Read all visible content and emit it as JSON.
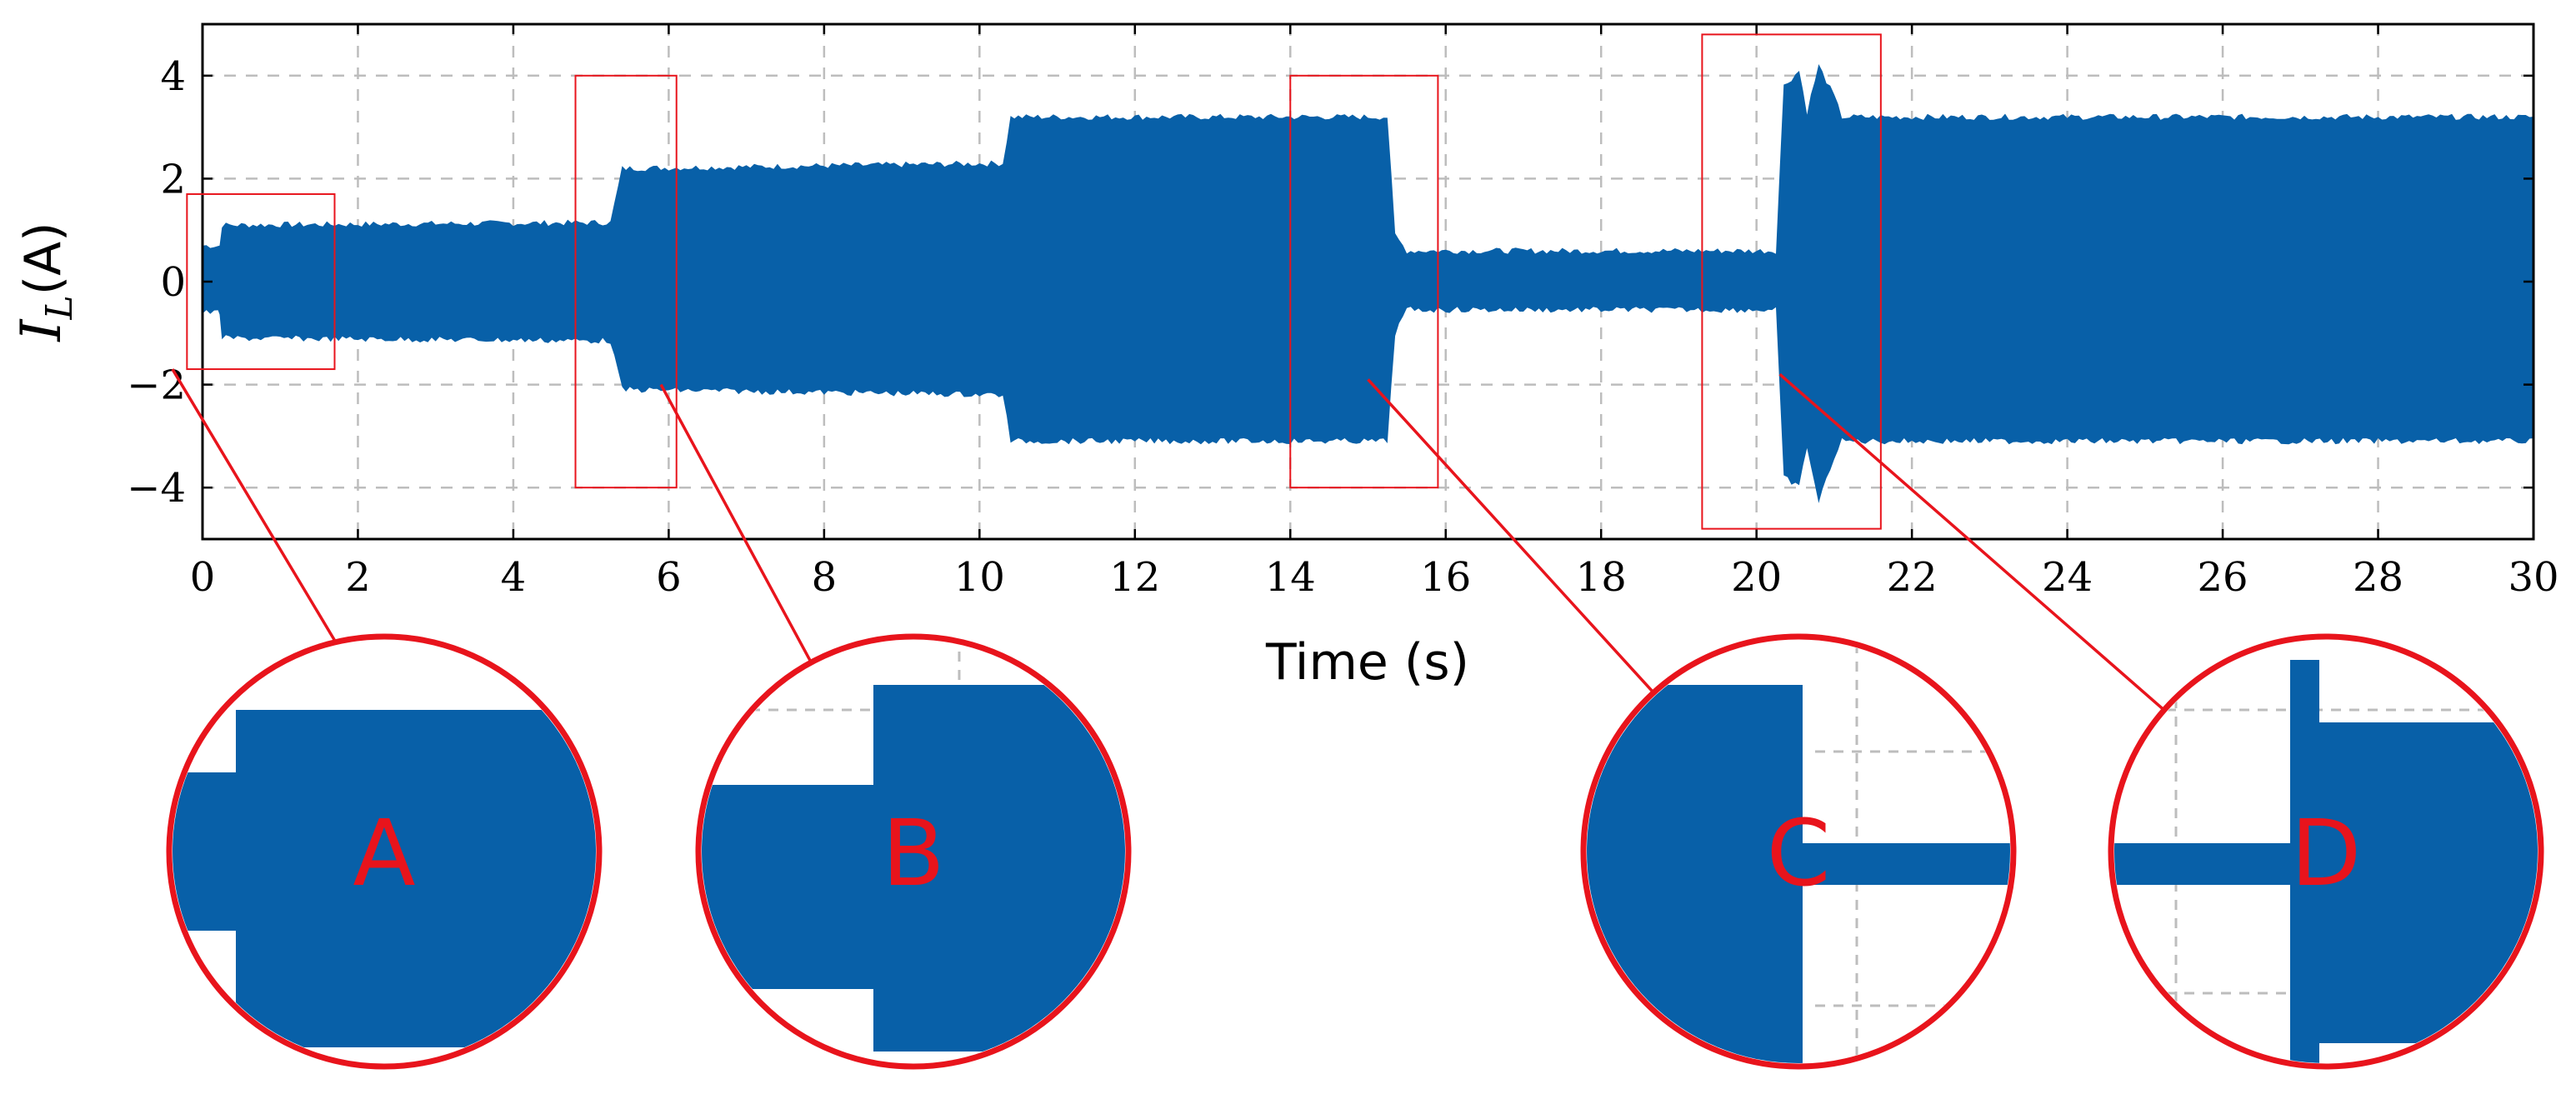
{
  "chart_data": {
    "type": "line",
    "xlabel": "Time (s)",
    "ylabel": "I_L(A)",
    "ylabel_main": "I",
    "ylabel_sub": "L",
    "ylabel_unit": "(A)",
    "xlim": [
      0,
      30
    ],
    "ylim": [
      -5,
      5
    ],
    "xticks": [
      0,
      2,
      4,
      6,
      8,
      10,
      12,
      14,
      16,
      18,
      20,
      22,
      24,
      26,
      28,
      30
    ],
    "yticks": [
      -4,
      -2,
      0,
      2,
      4
    ],
    "grid": true,
    "series": [
      {
        "color": "#0860a8",
        "envelope_upper": [
          [
            0,
            0.7
          ],
          [
            0.22,
            0.7
          ],
          [
            0.25,
            1.1
          ],
          [
            5.25,
            1.15
          ],
          [
            5.4,
            2.2
          ],
          [
            10.3,
            2.3
          ],
          [
            10.4,
            3.2
          ],
          [
            15.25,
            3.2
          ],
          [
            15.35,
            0.9
          ],
          [
            15.5,
            0.6
          ],
          [
            20.25,
            0.6
          ],
          [
            20.35,
            3.8
          ],
          [
            20.55,
            4.1
          ],
          [
            20.65,
            3.3
          ],
          [
            20.8,
            4.2
          ],
          [
            21.0,
            3.6
          ],
          [
            21.1,
            3.2
          ],
          [
            30,
            3.2
          ]
        ],
        "envelope_lower": [
          [
            0,
            -0.6
          ],
          [
            0.22,
            -0.6
          ],
          [
            0.25,
            -1.1
          ],
          [
            5.25,
            -1.15
          ],
          [
            5.4,
            -2.1
          ],
          [
            10.3,
            -2.2
          ],
          [
            10.4,
            -3.1
          ],
          [
            15.25,
            -3.1
          ],
          [
            15.35,
            -1.0
          ],
          [
            15.5,
            -0.55
          ],
          [
            20.25,
            -0.55
          ],
          [
            20.35,
            -3.8
          ],
          [
            20.55,
            -4.0
          ],
          [
            20.65,
            -3.2
          ],
          [
            20.8,
            -4.3
          ],
          [
            21.0,
            -3.4
          ],
          [
            21.1,
            -3.1
          ],
          [
            30,
            -3.1
          ]
        ]
      }
    ],
    "zoom_regions": [
      {
        "label": "A",
        "x_range": [
          -0.2,
          1.7
        ],
        "y_range": [
          -1.7,
          1.7
        ]
      },
      {
        "label": "B",
        "x_range": [
          4.8,
          6.1
        ],
        "y_range": [
          -4.0,
          4.0
        ]
      },
      {
        "label": "C",
        "x_range": [
          14.0,
          15.9
        ],
        "y_range": [
          -4.0,
          4.0
        ]
      },
      {
        "label": "D",
        "x_range": [
          19.3,
          21.6
        ],
        "y_range": [
          -4.8,
          4.8
        ]
      }
    ]
  },
  "colors": {
    "series": "#0860a8",
    "annotation": "#e8141c",
    "grid": "#bdbdbd"
  }
}
